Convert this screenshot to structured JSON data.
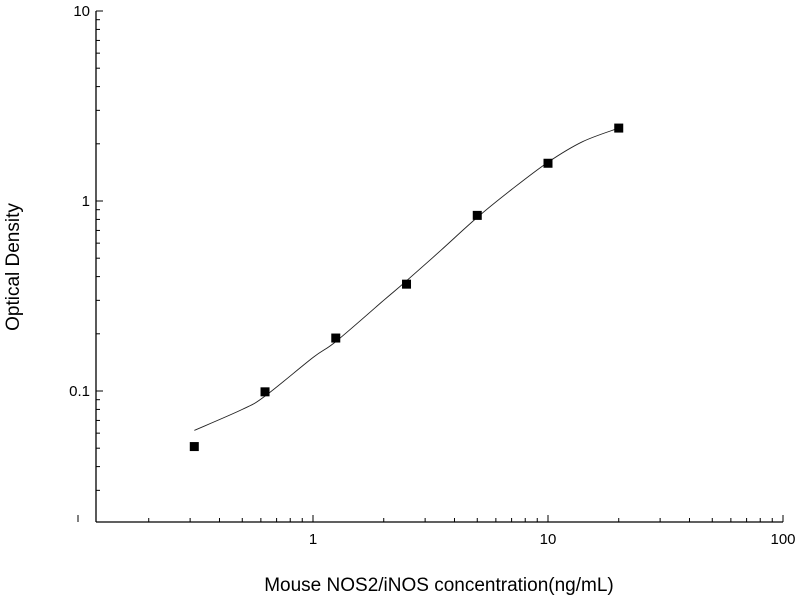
{
  "chart_data": {
    "type": "scatter",
    "title": "",
    "xlabel": "Mouse NOS2/iNOS concentration(ng/mL)",
    "ylabel": "Optical Density",
    "x_scale": "log",
    "y_scale": "log",
    "xlim": [
      0.1,
      100
    ],
    "ylim": [
      0.02,
      10
    ],
    "x_tick_labels": [
      "1",
      "10",
      "100"
    ],
    "y_tick_labels": [
      "0.1",
      "1",
      "10"
    ],
    "grid": false,
    "legend": "none",
    "series": [
      {
        "marker": "square",
        "x": [
          0.3125,
          0.625,
          1.25,
          2.5,
          5,
          10,
          20
        ],
        "y": [
          0.051,
          0.099,
          0.19,
          0.365,
          0.84,
          1.58,
          2.42
        ]
      }
    ],
    "fit_curve": {
      "x": [
        0.3125,
        0.5,
        0.625,
        1,
        1.25,
        2,
        2.5,
        3.5,
        5,
        7,
        10,
        14,
        20
      ],
      "y": [
        0.062,
        0.08,
        0.094,
        0.15,
        0.182,
        0.3,
        0.38,
        0.55,
        0.82,
        1.15,
        1.6,
        2.05,
        2.42
      ]
    },
    "colors": {
      "markers": "#000000",
      "curve": "#222222",
      "axes": "#000000"
    }
  }
}
